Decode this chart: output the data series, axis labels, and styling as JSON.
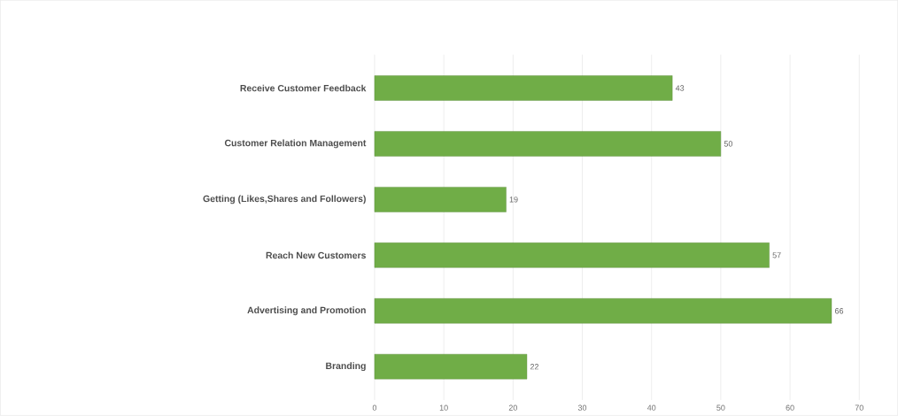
{
  "chart_data": {
    "type": "bar",
    "orientation": "horizontal",
    "categories": [
      "Receive Customer Feedback",
      "Customer Relation Management",
      "Getting (Likes,Shares and Followers)",
      "Reach New Customers",
      "Advertising and Promotion",
      "Branding"
    ],
    "values": [
      43,
      50,
      19,
      57,
      66,
      22
    ],
    "color": "#70ad47",
    "xlim": [
      0,
      70
    ],
    "xticks": [
      0,
      10,
      20,
      30,
      40,
      50,
      60,
      70
    ],
    "grid": "x",
    "data_labels": true
  }
}
